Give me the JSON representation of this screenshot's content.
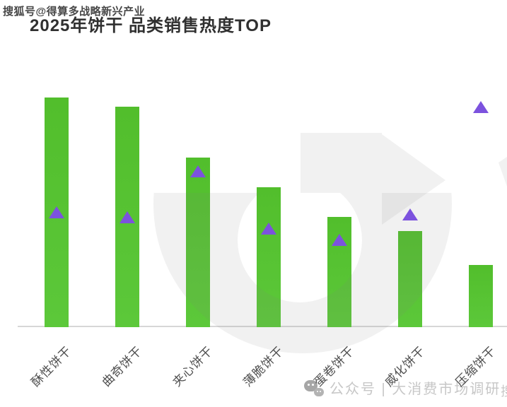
{
  "watermark_top": "搜狐号@得算多战略新兴产业",
  "title": "2025年饼干 品类销售热度TOP",
  "watermark_bottom": {
    "icon": "wechat-icon",
    "text": "公众号 | 大消费市场调研"
  },
  "watermark_edge_partial": "搜",
  "colors": {
    "bar_green": "#57C331",
    "triangle_purple": "#7C52DE",
    "axis_line": "#D7D7D7",
    "title_text": "#303030",
    "category_label_text": "#4F4F4F",
    "background_watermark_gray": "#F0F0F0",
    "bottom_watermark_text": "#C7C7C7"
  },
  "chart_data": {
    "type": "bar",
    "title": "2025年饼干 品类销售热度TOP",
    "categories": [
      "酥性饼干",
      "曲奇饼干",
      "夹心饼干",
      "薄脆饼干",
      "蛋卷饼干",
      "威化饼干",
      "压缩饼干"
    ],
    "series": [
      {
        "name": "bar",
        "type": "bar",
        "values": [
          100,
          96,
          74,
          61,
          48,
          42,
          27
        ]
      },
      {
        "name": "triangle-marker",
        "type": "scatter",
        "values": [
          50,
          48,
          68,
          43,
          38,
          49,
          96
        ]
      }
    ],
    "xlabel": "",
    "ylabel": "",
    "value_axis_visible": false,
    "values_estimated": true,
    "ylim": [
      0,
      105
    ],
    "grid": false,
    "legend": false,
    "category_label_rotation_deg": 45
  }
}
